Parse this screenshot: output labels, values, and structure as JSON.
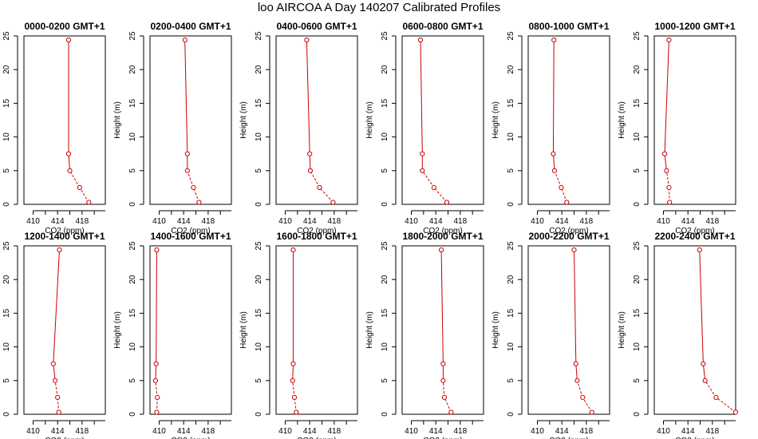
{
  "title": "loo AIRCOA A  Day 140207  Calibrated Profiles",
  "colors": {
    "series": "#cc0000",
    "axis": "#000000"
  },
  "chart_data": [
    {
      "type": "line",
      "title": "0000-0200 GMT+1",
      "xlabel": "CO2 (ppm)",
      "ylabel": "Height (m)",
      "xticks": [
        410,
        414,
        418
      ],
      "yticks": [
        0,
        5,
        10,
        15,
        20,
        25
      ],
      "xlim": [
        408.5,
        421.8
      ],
      "ylim": [
        0,
        25
      ],
      "series": [
        {
          "x": [
            419.1,
            417.6,
            416.0,
            415.8,
            415.8
          ],
          "y": [
            0.3,
            2.5,
            5.0,
            7.5,
            24.4
          ]
        }
      ]
    },
    {
      "type": "line",
      "title": "0200-0400 GMT+1",
      "xlabel": "CO2 (ppm)",
      "ylabel": "Height (m)",
      "xticks": [
        410,
        414,
        418
      ],
      "yticks": [
        0,
        5,
        10,
        15,
        20,
        25
      ],
      "xlim": [
        408.5,
        421.8
      ],
      "ylim": [
        0,
        25
      ],
      "series": [
        {
          "x": [
            416.5,
            415.6,
            414.6,
            414.6,
            414.2
          ],
          "y": [
            0.3,
            2.5,
            5.0,
            7.5,
            24.4
          ]
        }
      ]
    },
    {
      "type": "line",
      "title": "0400-0600 GMT+1",
      "xlabel": "CO2 (ppm)",
      "ylabel": "Height (m)",
      "xticks": [
        410,
        414,
        418
      ],
      "yticks": [
        0,
        5,
        10,
        15,
        20,
        25
      ],
      "xlim": [
        408.5,
        421.8
      ],
      "ylim": [
        0,
        25
      ],
      "series": [
        {
          "x": [
            417.8,
            415.6,
            414.1,
            414.0,
            413.5
          ],
          "y": [
            0.3,
            2.5,
            5.0,
            7.5,
            24.4
          ]
        }
      ]
    },
    {
      "type": "line",
      "title": "0600-0800 GMT+1",
      "xlabel": "CO2 (ppm)",
      "ylabel": "Height (m)",
      "xticks": [
        410,
        414,
        418
      ],
      "yticks": [
        0,
        5,
        10,
        15,
        20,
        25
      ],
      "xlim": [
        408.5,
        421.8
      ],
      "ylim": [
        0,
        25
      ],
      "series": [
        {
          "x": [
            415.8,
            413.7,
            411.8,
            411.8,
            411.5
          ],
          "y": [
            0.3,
            2.5,
            5.0,
            7.5,
            24.4
          ]
        }
      ]
    },
    {
      "type": "line",
      "title": "0800-1000 GMT+1",
      "xlabel": "CO2 (ppm)",
      "ylabel": "Height (m)",
      "xticks": [
        410,
        414,
        418
      ],
      "yticks": [
        0,
        5,
        10,
        15,
        20,
        25
      ],
      "xlim": [
        408.5,
        421.8
      ],
      "ylim": [
        0,
        25
      ],
      "series": [
        {
          "x": [
            414.8,
            413.9,
            412.8,
            412.6,
            412.7
          ],
          "y": [
            0.3,
            2.5,
            5.0,
            7.5,
            24.4
          ]
        }
      ]
    },
    {
      "type": "line",
      "title": "1000-1200 GMT+1",
      "xlabel": "CO2 (ppm)",
      "ylabel": "Height (m)",
      "xticks": [
        410,
        414,
        418
      ],
      "yticks": [
        0,
        5,
        10,
        15,
        20,
        25
      ],
      "xlim": [
        408.5,
        421.8
      ],
      "ylim": [
        0,
        25
      ],
      "series": [
        {
          "x": [
            411.0,
            410.9,
            410.5,
            410.2,
            410.9
          ],
          "y": [
            0.3,
            2.5,
            5.0,
            7.5,
            24.4
          ]
        }
      ]
    },
    {
      "type": "line",
      "title": "1200-1400 GMT+1",
      "xlabel": "CO2 (ppm)",
      "ylabel": "Height (m)",
      "xticks": [
        410,
        414,
        418
      ],
      "yticks": [
        0,
        5,
        10,
        15,
        20,
        25
      ],
      "xlim": [
        408.5,
        421.8
      ],
      "ylim": [
        0,
        25
      ],
      "series": [
        {
          "x": [
            414.2,
            414.0,
            413.6,
            413.3,
            414.3
          ],
          "y": [
            0.3,
            2.5,
            5.0,
            7.5,
            24.4
          ]
        }
      ]
    },
    {
      "type": "line",
      "title": "1400-1600 GMT+1",
      "xlabel": "CO2 (ppm)",
      "ylabel": "Height (m)",
      "xticks": [
        410,
        414,
        418
      ],
      "yticks": [
        0,
        5,
        10,
        15,
        20,
        25
      ],
      "xlim": [
        408.5,
        421.8
      ],
      "ylim": [
        0,
        25
      ],
      "series": [
        {
          "x": [
            409.6,
            409.7,
            409.4,
            409.5,
            409.6
          ],
          "y": [
            0.3,
            2.5,
            5.0,
            7.5,
            24.4
          ]
        }
      ]
    },
    {
      "type": "line",
      "title": "1600-1800 GMT+1",
      "xlabel": "CO2 (ppm)",
      "ylabel": "Height (m)",
      "xticks": [
        410,
        414,
        418
      ],
      "yticks": [
        0,
        5,
        10,
        15,
        20,
        25
      ],
      "xlim": [
        408.5,
        421.8
      ],
      "ylim": [
        0,
        25
      ],
      "series": [
        {
          "x": [
            411.8,
            411.5,
            411.2,
            411.3,
            411.3
          ],
          "y": [
            0.3,
            2.5,
            5.0,
            7.5,
            24.4
          ]
        }
      ]
    },
    {
      "type": "line",
      "title": "1800-2000 GMT+1",
      "xlabel": "CO2 (ppm)",
      "ylabel": "Height (m)",
      "xticks": [
        410,
        414,
        418
      ],
      "yticks": [
        0,
        5,
        10,
        15,
        20,
        25
      ],
      "xlim": [
        408.5,
        421.8
      ],
      "ylim": [
        0,
        25
      ],
      "series": [
        {
          "x": [
            416.5,
            415.4,
            415.2,
            415.2,
            414.9
          ],
          "y": [
            0.3,
            2.5,
            5.0,
            7.5,
            24.4
          ]
        }
      ]
    },
    {
      "type": "line",
      "title": "2000-2200 GMT+1",
      "xlabel": "CO2 (ppm)",
      "ylabel": "Height (m)",
      "xticks": [
        410,
        414,
        418
      ],
      "yticks": [
        0,
        5,
        10,
        15,
        20,
        25
      ],
      "xlim": [
        408.5,
        421.8
      ],
      "ylim": [
        0,
        25
      ],
      "series": [
        {
          "x": [
            418.9,
            417.4,
            416.5,
            416.3,
            416.0
          ],
          "y": [
            0.3,
            2.5,
            5.0,
            7.5,
            24.4
          ]
        }
      ]
    },
    {
      "type": "line",
      "title": "2200-2400 GMT+1",
      "xlabel": "CO2 (ppm)",
      "ylabel": "Height (m)",
      "xticks": [
        410,
        414,
        418
      ],
      "yticks": [
        0,
        5,
        10,
        15,
        20,
        25
      ],
      "xlim": [
        408.5,
        421.8
      ],
      "ylim": [
        0,
        25
      ],
      "series": [
        {
          "x": [
            421.8,
            418.6,
            416.8,
            416.5,
            415.9
          ],
          "y": [
            0.3,
            2.5,
            5.0,
            7.5,
            24.4
          ]
        }
      ]
    }
  ]
}
